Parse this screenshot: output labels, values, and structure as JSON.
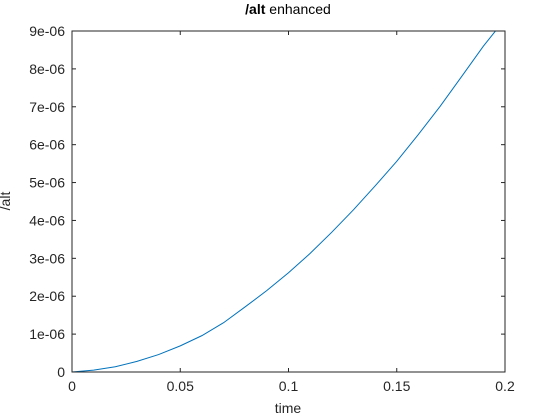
{
  "chart_data": {
    "type": "line",
    "title_bold": "/alt",
    "title_rest": " enhanced",
    "xlabel": "time",
    "ylabel": "/alt",
    "xlim": [
      0,
      0.2
    ],
    "ylim": [
      0,
      9e-06
    ],
    "grid": false,
    "legend": "none",
    "x_ticks": [
      {
        "value": 0,
        "label": "0"
      },
      {
        "value": 0.05,
        "label": "0.05"
      },
      {
        "value": 0.1,
        "label": "0.1"
      },
      {
        "value": 0.15,
        "label": "0.15"
      },
      {
        "value": 0.2,
        "label": "0.2"
      }
    ],
    "y_ticks": [
      {
        "value": 0,
        "label": "0"
      },
      {
        "value": 1e-06,
        "label": "1e-06"
      },
      {
        "value": 2e-06,
        "label": "2e-06"
      },
      {
        "value": 3e-06,
        "label": "3e-06"
      },
      {
        "value": 4e-06,
        "label": "4e-06"
      },
      {
        "value": 5e-06,
        "label": "5e-06"
      },
      {
        "value": 6e-06,
        "label": "6e-06"
      },
      {
        "value": 7e-06,
        "label": "7e-06"
      },
      {
        "value": 8e-06,
        "label": "8e-06"
      },
      {
        "value": 9e-06,
        "label": "9e-06"
      }
    ],
    "series": [
      {
        "color": "#0072bd",
        "x": [
          0,
          0.01,
          0.02,
          0.03,
          0.04,
          0.05,
          0.06,
          0.07,
          0.08,
          0.09,
          0.1,
          0.11,
          0.12,
          0.13,
          0.14,
          0.15,
          0.16,
          0.17,
          0.18,
          0.19,
          0.197
        ],
        "y": [
          0,
          5e-08,
          1.4e-07,
          2.8e-07,
          4.6e-07,
          6.9e-07,
          9.6e-07,
          1.3e-06,
          1.72e-06,
          2.15e-06,
          2.62e-06,
          3.13e-06,
          3.69e-06,
          4.28e-06,
          4.91e-06,
          5.56e-06,
          6.27e-06,
          7.01e-06,
          7.8e-06,
          8.6e-06,
          9.1e-06
        ]
      }
    ]
  }
}
